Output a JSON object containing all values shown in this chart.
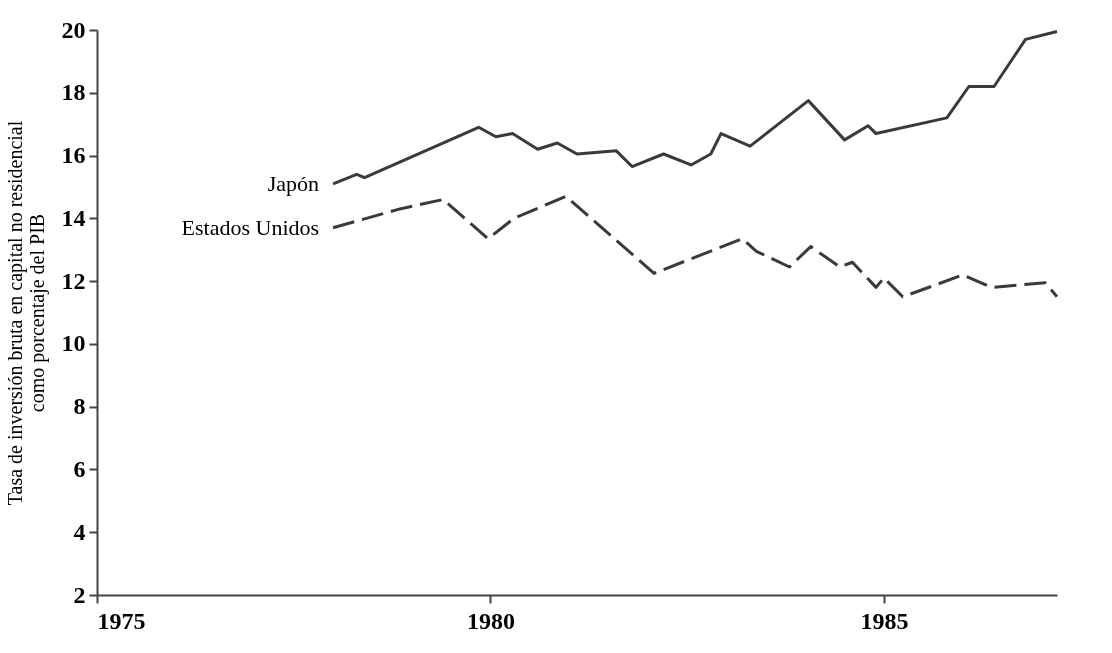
{
  "chart_data": {
    "type": "line",
    "ylabel": "Tasa de inversión bruta en capital no residencial como porcentaje del PIB",
    "xlim": [
      1975,
      1987.2
    ],
    "xticks": [
      1975,
      1980,
      1985
    ],
    "ylim": [
      2,
      20
    ],
    "yticks": [
      2,
      4,
      6,
      8,
      10,
      12,
      14,
      16,
      18,
      20
    ],
    "grid": false,
    "series": [
      {
        "name": "Japón",
        "color": "#3a3a3a",
        "line_style": "solid",
        "x": [
          1978.0,
          1978.3,
          1978.4,
          1979.85,
          1980.07,
          1980.28,
          1980.6,
          1980.85,
          1981.1,
          1981.6,
          1981.8,
          1982.2,
          1982.55,
          1982.8,
          1982.93,
          1983.3,
          1984.04,
          1984.5,
          1984.8,
          1984.9,
          1985.8,
          1986.08,
          1986.4,
          1986.8,
          1987.2
        ],
        "values": [
          15.1,
          15.4,
          15.3,
          16.9,
          16.6,
          16.7,
          16.2,
          16.4,
          16.05,
          16.15,
          15.65,
          16.05,
          15.7,
          16.05,
          16.7,
          16.3,
          17.75,
          16.5,
          16.95,
          16.7,
          17.2,
          18.2,
          18.2,
          19.7,
          19.95
        ]
      },
      {
        "name": "Estados Unidos",
        "color": "#3a3a3a",
        "line_style": "dashed",
        "x": [
          1978.0,
          1978.85,
          1979.4,
          1979.97,
          1980.3,
          1980.96,
          1982.08,
          1983.2,
          1983.38,
          1983.8,
          1984.07,
          1984.44,
          1984.6,
          1984.9,
          1985.0,
          1985.24,
          1985.68,
          1986.0,
          1986.37,
          1987.05,
          1987.2
        ],
        "values": [
          13.7,
          14.3,
          14.6,
          13.35,
          14.0,
          14.7,
          12.25,
          13.35,
          12.95,
          12.45,
          13.1,
          12.45,
          12.6,
          11.8,
          12.1,
          11.5,
          11.9,
          12.2,
          11.8,
          11.95,
          11.5
        ]
      }
    ]
  }
}
